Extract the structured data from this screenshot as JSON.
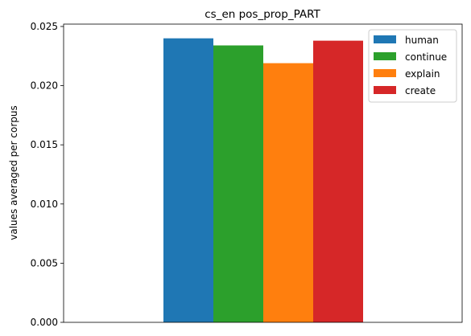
{
  "chart_data": {
    "type": "bar",
    "title": "cs_en pos_prop_PART",
    "ylabel": "values averaged per corpus",
    "xlabel": "",
    "ylim": [
      0,
      0.0252
    ],
    "yticks": [
      "0.000",
      "0.005",
      "0.010",
      "0.015",
      "0.020",
      "0.025"
    ],
    "ytick_values": [
      0,
      0.005,
      0.01,
      0.015,
      0.02,
      0.025
    ],
    "grid": false,
    "legend_position": "top-right",
    "series": [
      {
        "name": "human",
        "value": 0.024,
        "color": "#1f77b4"
      },
      {
        "name": "continue",
        "value": 0.0234,
        "color": "#2ca02c"
      },
      {
        "name": "explain",
        "value": 0.0219,
        "color": "#ff7f0e"
      },
      {
        "name": "create",
        "value": 0.0238,
        "color": "#d62728"
      }
    ]
  }
}
